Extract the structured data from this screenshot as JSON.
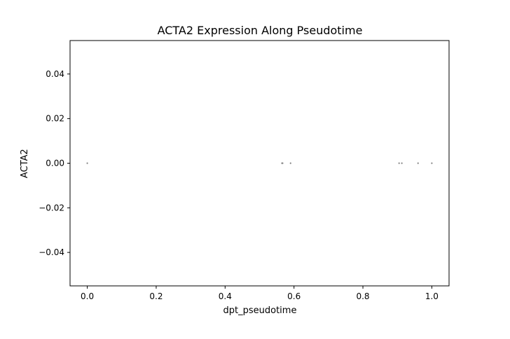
{
  "chart_data": {
    "type": "scatter",
    "title": "ACTA2 Expression Along Pseudotime",
    "xlabel": "dpt_pseudotime",
    "ylabel": "ACTA2",
    "xlim": [
      -0.05,
      1.05
    ],
    "ylim": [
      -0.055,
      0.055
    ],
    "xticks": [
      0.0,
      0.2,
      0.4,
      0.6,
      0.8,
      1.0
    ],
    "xtick_labels": [
      "0.0",
      "0.2",
      "0.4",
      "0.6",
      "0.8",
      "1.0"
    ],
    "yticks": [
      0.04,
      0.02,
      0.0,
      -0.02,
      -0.04
    ],
    "ytick_labels": [
      "0.04",
      "0.02",
      "0.00",
      "−0.02",
      "−0.04"
    ],
    "grid": false,
    "point_color": "#808080",
    "points": [
      {
        "x": 0.0,
        "y": 0.0
      },
      {
        "x": 0.565,
        "y": 0.0
      },
      {
        "x": 0.567,
        "y": 0.0
      },
      {
        "x": 0.59,
        "y": 0.0
      },
      {
        "x": 0.905,
        "y": 0.0
      },
      {
        "x": 0.913,
        "y": 0.0
      },
      {
        "x": 0.96,
        "y": 0.0
      },
      {
        "x": 1.0,
        "y": 0.0
      }
    ]
  }
}
